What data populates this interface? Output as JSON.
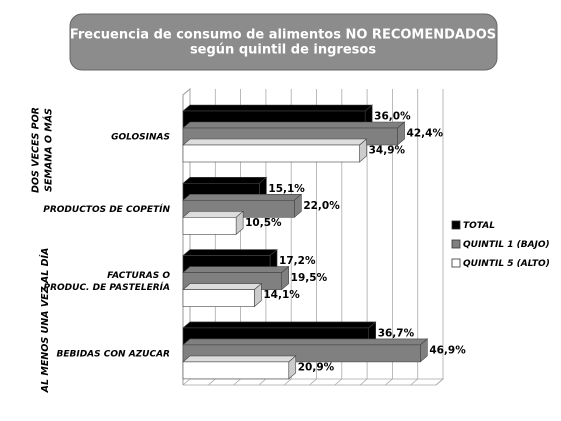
{
  "chart_data": {
    "type": "bar3d-horizontal",
    "title": "Frecuencia de consumo de alimentos NO RECOMENDADOS\nsegún quintil de ingresos",
    "groups": [
      "DOS VECES POR\nSEMANA O MÁS",
      "AL MENOS UNA VEZ AL DÍA"
    ],
    "categories": [
      "GOLOSINAS",
      "PRODUCTOS DE COPETÍN",
      "FACTURAS O\nPRODUC. DE PASTELERÍA",
      "BEBIDAS CON AZUCAR"
    ],
    "series": [
      {
        "name": "TOTAL",
        "color": "#000000",
        "values": [
          36.0,
          15.1,
          17.2,
          36.7
        ],
        "value_labels": [
          "36,0%",
          "15,1%",
          "17,2%",
          "36,7%"
        ]
      },
      {
        "name": "QUINTIL 1 (BAJO)",
        "color": "#808080",
        "values": [
          42.4,
          22.0,
          19.5,
          46.9
        ],
        "value_labels": [
          "42,4%",
          "22,0%",
          "19,5%",
          "46,9%"
        ]
      },
      {
        "name": "QUINTIL 5 (ALTO)",
        "color": "#ffffff",
        "values": [
          34.9,
          10.5,
          14.1,
          20.9
        ],
        "value_labels": [
          "34,9%",
          "10,5%",
          "14,1%",
          "20,9%"
        ]
      }
    ],
    "xlim": [
      0,
      50
    ],
    "xticks": [
      0,
      5,
      10,
      15,
      20,
      25,
      30,
      35,
      40,
      45,
      50
    ],
    "grid": true,
    "legend": "right"
  }
}
